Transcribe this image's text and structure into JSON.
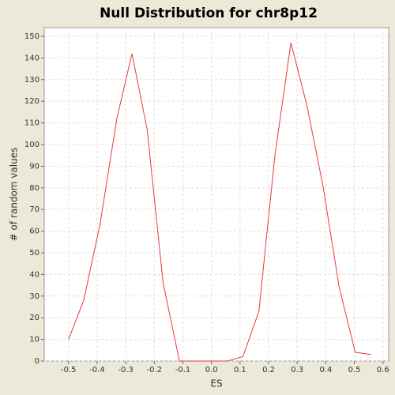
{
  "chart_data": {
    "type": "line",
    "title": "Null Distribution for chr8p12",
    "x_label": "ES",
    "y_label": "# of random values",
    "x": [
      -0.5,
      -0.447,
      -0.39,
      -0.331,
      -0.278,
      -0.225,
      -0.169,
      -0.112,
      -0.056,
      0,
      0.056,
      0.11,
      0.166,
      0.222,
      0.278,
      0.334,
      0.39,
      0.447,
      0.503,
      0.559
    ],
    "series": [
      {
        "color": "#e8393c",
        "values": [
          10,
          28,
          63,
          112,
          142,
          107,
          36,
          0,
          0,
          0,
          0,
          2,
          23,
          95,
          147,
          118,
          81,
          34,
          4,
          3
        ]
      }
    ],
    "xlim": [
      -0.585,
      0.62
    ],
    "ylim": [
      0,
      154
    ],
    "xticks": [
      -0.5,
      -0.4,
      -0.3,
      -0.2,
      -0.1,
      {
        "value": 0,
        "label": "0.0"
      },
      0.1,
      0.2,
      0.3,
      0.4,
      0.5,
      0.6
    ],
    "yticks": [
      0,
      10,
      20,
      30,
      40,
      50,
      60,
      70,
      80,
      90,
      100,
      110,
      120,
      130,
      140,
      150
    ],
    "grid": true
  }
}
